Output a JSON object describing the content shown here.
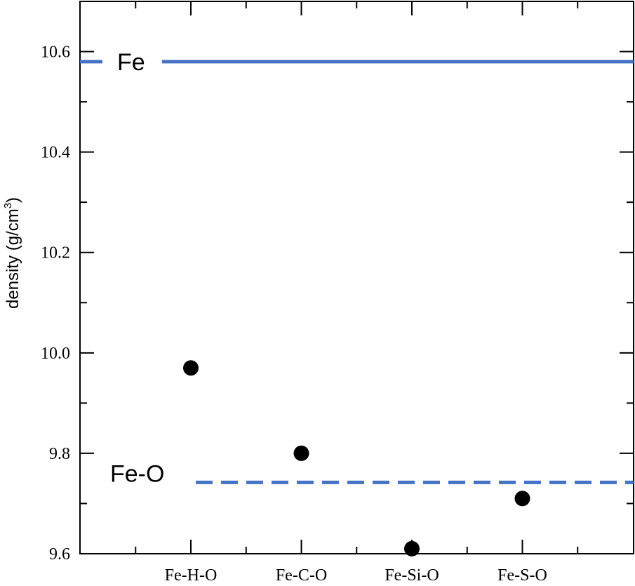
{
  "chart_data": {
    "type": "scatter",
    "categories": [
      "Fe-H-O",
      "Fe-C-O",
      "Fe-Si-O",
      "Fe-S-O"
    ],
    "values": [
      9.97,
      9.8,
      9.61,
      9.71
    ],
    "ylabel": "density (g/cm",
    "ylabel_sup": "3",
    "ylabel_close": ")",
    "ylim": [
      9.6,
      10.7
    ],
    "yticks": [
      "9.6",
      "9.8",
      "10.0",
      "10.2",
      "10.4",
      "10.6"
    ],
    "ytick_values": [
      9.6,
      9.8,
      10.0,
      10.2,
      10.4,
      10.6
    ],
    "reference_lines": [
      {
        "label": "Fe",
        "value": 10.58,
        "style": "solid"
      },
      {
        "label": "Fe-O",
        "value": 9.742,
        "style": "dashed"
      }
    ],
    "grid": false,
    "colors": {
      "points": "#000000",
      "reference": "#4472C4"
    }
  }
}
